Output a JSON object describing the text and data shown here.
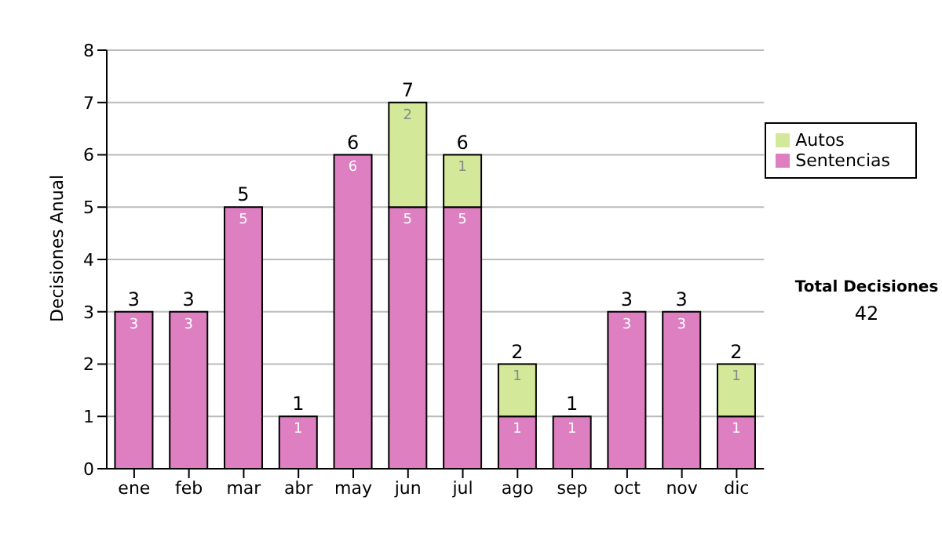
{
  "chart_data": {
    "type": "bar",
    "ylabel": "Decisiones Anual",
    "categories": [
      "ene",
      "feb",
      "mar",
      "abr",
      "may",
      "jun",
      "jul",
      "ago",
      "sep",
      "oct",
      "nov",
      "dic"
    ],
    "series": [
      {
        "name": "Sentencias",
        "color": "#dd7fc0",
        "values": [
          3,
          3,
          5,
          1,
          6,
          5,
          5,
          1,
          1,
          3,
          3,
          1
        ]
      },
      {
        "name": "Autos",
        "color": "#d4e89a",
        "values": [
          null,
          null,
          null,
          null,
          null,
          2,
          1,
          1,
          null,
          null,
          null,
          1
        ]
      }
    ],
    "stacked": true,
    "ylim": [
      0,
      8
    ],
    "yticks": [
      0,
      1,
      2,
      3,
      4,
      5,
      6,
      7,
      8
    ],
    "grid": "y",
    "legend": "right",
    "data_labels": true,
    "totals": [
      "3",
      "3",
      "5",
      "1",
      "6",
      "7",
      "6",
      "2",
      "1",
      "3",
      "3",
      "2"
    ],
    "annotations": [
      "Total Decisiones",
      "42"
    ]
  }
}
